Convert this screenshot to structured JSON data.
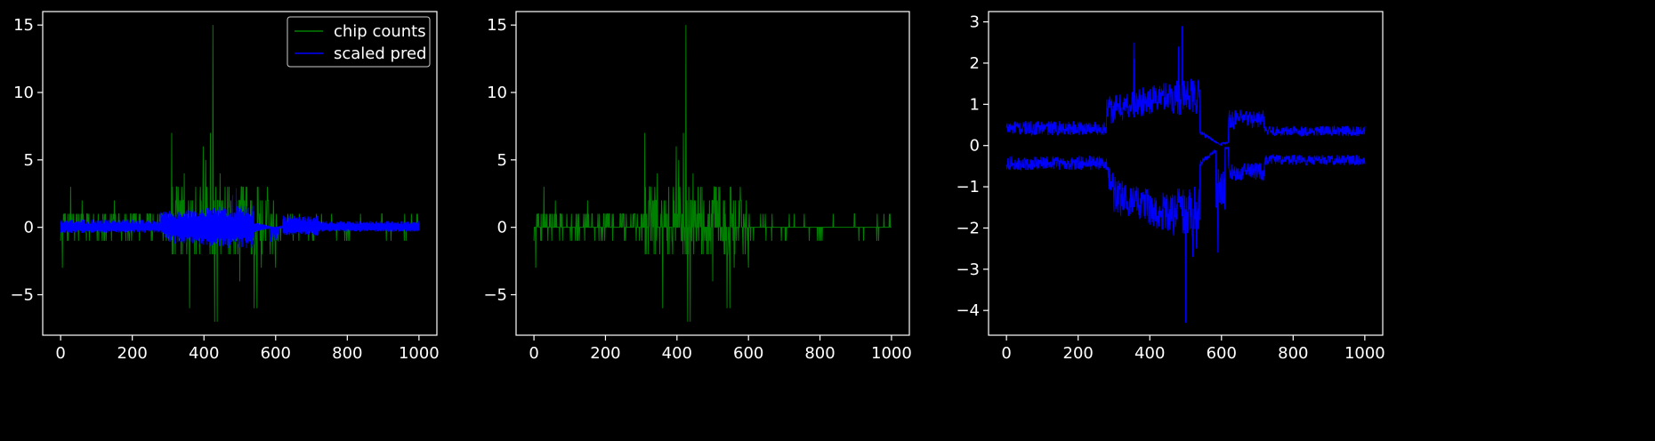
{
  "chart_data": [
    {
      "type": "line",
      "panel": "left",
      "xlim": [
        -50,
        1050
      ],
      "ylim": [
        -8,
        16
      ],
      "xticks": [
        0,
        200,
        400,
        600,
        800,
        1000
      ],
      "yticks": [
        -5,
        0,
        5,
        10,
        15
      ],
      "grid": false,
      "legend_placement": "top-right",
      "series": [
        {
          "name": "chip counts",
          "color": "#008000",
          "kind": "counts",
          "x_range": [
            0,
            1000
          ]
        },
        {
          "name": "scaled pred",
          "color": "#0000ff",
          "kind": "pred",
          "x_range": [
            0,
            1000
          ]
        }
      ],
      "notable_points": [
        {
          "x": 310,
          "y": 7
        },
        {
          "x": 400,
          "y": 6
        },
        {
          "x": 420,
          "y": 7
        },
        {
          "x": 425,
          "y": 15
        },
        {
          "x": 430,
          "y": -7
        },
        {
          "x": 437,
          "y": -7
        }
      ]
    },
    {
      "type": "line",
      "panel": "middle",
      "xlim": [
        -50,
        1050
      ],
      "ylim": [
        -8,
        16
      ],
      "xticks": [
        0,
        200,
        400,
        600,
        800,
        1000
      ],
      "yticks": [
        -5,
        0,
        5,
        10,
        15
      ],
      "grid": false,
      "series": [
        {
          "color": "#008000",
          "kind": "counts",
          "x_range": [
            0,
            1000
          ]
        }
      ],
      "notable_points": [
        {
          "x": 310,
          "y": 7
        },
        {
          "x": 400,
          "y": 6
        },
        {
          "x": 420,
          "y": 7
        },
        {
          "x": 425,
          "y": 15
        },
        {
          "x": 430,
          "y": -7
        },
        {
          "x": 437,
          "y": -7
        }
      ]
    },
    {
      "type": "line",
      "panel": "right",
      "xlim": [
        -50,
        1050
      ],
      "ylim": [
        -4.6,
        3.25
      ],
      "xticks": [
        0,
        200,
        400,
        600,
        800,
        1000
      ],
      "yticks": [
        -4,
        -3,
        -2,
        -1,
        0,
        1,
        2,
        3
      ],
      "grid": false,
      "series": [
        {
          "color": "#0000ff",
          "kind": "pred_upper",
          "x_range": [
            0,
            1000
          ]
        },
        {
          "color": "#0000ff",
          "kind": "pred_lower",
          "x_range": [
            0,
            1000
          ]
        }
      ],
      "notable_points": [
        {
          "x": 355,
          "y": 2.5
        },
        {
          "x": 490,
          "y": 2.9
        },
        {
          "x": 500,
          "y": -4.3
        },
        {
          "x": 590,
          "y": -2.6
        }
      ]
    }
  ]
}
